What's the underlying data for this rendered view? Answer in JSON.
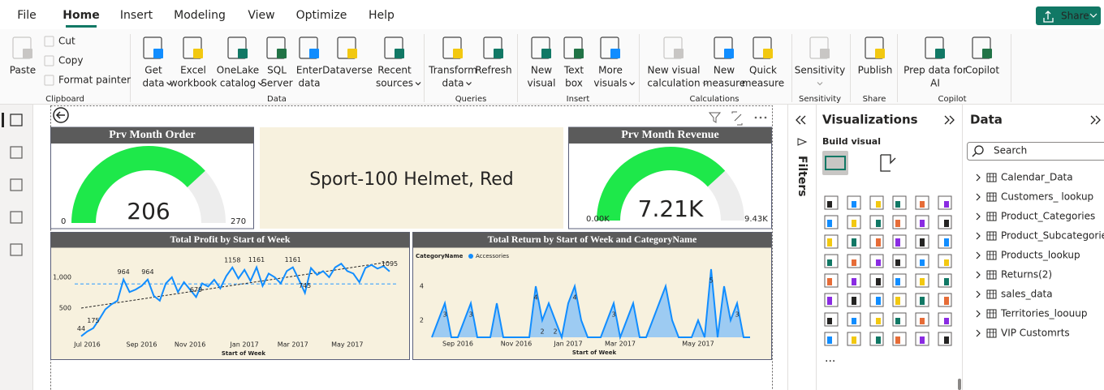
{
  "menu": {
    "tabs": [
      "File",
      "Home",
      "Insert",
      "Modeling",
      "View",
      "Optimize",
      "Help"
    ],
    "active_tab": 1,
    "share": "Share"
  },
  "ribbon": {
    "groups": [
      {
        "label": "Clipboard",
        "buttons": [
          {
            "lines": [
              "Paste"
            ],
            "disabled": true
          },
          {
            "lines": [
              "Cut"
            ],
            "disabled": true,
            "small": true
          },
          {
            "lines": [
              "Copy"
            ],
            "disabled": true,
            "small": true
          },
          {
            "lines": [
              "Format painter"
            ],
            "disabled": true,
            "small": true
          }
        ]
      },
      {
        "label": "Data",
        "buttons": [
          {
            "lines": [
              "Get",
              "data"
            ],
            "dropdown": true
          },
          {
            "lines": [
              "Excel",
              "workbook"
            ]
          },
          {
            "lines": [
              "OneLake",
              "catalog"
            ],
            "dropdown": true
          },
          {
            "lines": [
              "SQL",
              "Server"
            ]
          },
          {
            "lines": [
              "Enter",
              "data"
            ]
          },
          {
            "lines": [
              "Dataverse"
            ]
          },
          {
            "lines": [
              "Recent",
              "sources"
            ],
            "dropdown": true
          }
        ]
      },
      {
        "label": "Queries",
        "buttons": [
          {
            "lines": [
              "Transform",
              "data"
            ],
            "dropdown": true
          },
          {
            "lines": [
              "Refresh"
            ]
          }
        ]
      },
      {
        "label": "Insert",
        "buttons": [
          {
            "lines": [
              "New",
              "visual"
            ]
          },
          {
            "lines": [
              "Text",
              "box"
            ]
          },
          {
            "lines": [
              "More",
              "visuals"
            ],
            "dropdown": true
          }
        ]
      },
      {
        "label": "Calculations",
        "buttons": [
          {
            "lines": [
              "New visual",
              "calculation"
            ],
            "dropdown": true,
            "disabled": true
          },
          {
            "lines": [
              "New",
              "measure"
            ]
          },
          {
            "lines": [
              "Quick",
              "measure"
            ]
          }
        ]
      },
      {
        "label": "Sensitivity",
        "buttons": [
          {
            "lines": [
              "Sensitivity"
            ],
            "dropdown": true,
            "disabled": true
          }
        ]
      },
      {
        "label": "Share",
        "buttons": [
          {
            "lines": [
              "Publish"
            ]
          }
        ]
      },
      {
        "label": "Copilot",
        "buttons": [
          {
            "lines": [
              "Prep data for",
              "AI"
            ]
          },
          {
            "lines": [
              "Copilot"
            ]
          }
        ]
      }
    ]
  },
  "order_gauge": {
    "title": "Prv Month Order",
    "value": 206,
    "min": 0,
    "max": 270,
    "color": "#1ee84a"
  },
  "product_card": {
    "text": "Sport-100 Helmet, Red"
  },
  "revenue_gauge": {
    "title": "Prv Month Revenue",
    "value": 7210,
    "value_label": "7.21K",
    "min": {
      "value": 0,
      "label": "0.00K"
    },
    "max": {
      "value": 9430,
      "label": "9.43K"
    },
    "color": "#1ee84a"
  },
  "profit_chart": {
    "type": "line",
    "title": "Total Profit by Start of Week",
    "x_title": "Start of Week",
    "color": "#118dff",
    "values": [
      44,
      120,
      175,
      320,
      480,
      560,
      620,
      964,
      760,
      800,
      860,
      964,
      700,
      620,
      900,
      1000,
      760,
      920,
      800,
      679,
      900,
      850,
      960,
      820,
      1020,
      1158,
      980,
      1120,
      940,
      1161,
      860,
      1060,
      1000,
      900,
      1100,
      1161,
      960,
      745,
      1150,
      1040,
      1100,
      1000,
      1160,
      1220,
      1100,
      1060,
      920,
      1150,
      1200,
      1140,
      1180,
      1095
    ],
    "value_labels": [
      "44",
      null,
      "175",
      null,
      null,
      null,
      null,
      "964",
      null,
      null,
      null,
      "964",
      null,
      null,
      null,
      null,
      null,
      null,
      null,
      "679",
      null,
      null,
      null,
      null,
      null,
      "1158",
      null,
      null,
      null,
      "1161",
      null,
      null,
      null,
      null,
      null,
      "1161",
      null,
      "745",
      null,
      null,
      null,
      null,
      null,
      null,
      null,
      null,
      null,
      null,
      null,
      null,
      null,
      "1095"
    ],
    "ylim": [
      0,
      1420
    ],
    "yticks": [
      500,
      {
        "value": 1000,
        "label": "1,000"
      }
    ],
    "xticks": [
      {
        "value": 1,
        "label": "Jul 2016"
      },
      {
        "value": 10,
        "label": "Sep 2016"
      },
      {
        "value": 18,
        "label": "Nov 2016"
      },
      {
        "value": 27,
        "label": "Jan 2017"
      },
      {
        "value": 35,
        "label": "Mar 2017"
      },
      {
        "value": 44,
        "label": "May 2017"
      }
    ],
    "average": 890,
    "trend": [
      500,
      1250
    ]
  },
  "return_chart": {
    "type": "area",
    "title": "Total Return by Start of Week and CategoryName",
    "x_title": "Start of Week",
    "legend_title": "CategoryName",
    "series": [
      {
        "name": "Accessories",
        "color": "#118dff",
        "values": [
          1,
          2,
          3,
          1,
          1,
          2,
          3,
          1,
          1,
          1,
          3,
          1,
          1,
          1,
          1,
          1,
          4,
          2,
          3,
          2,
          1,
          3,
          4,
          2,
          1,
          1,
          1,
          2,
          3,
          1,
          2,
          3,
          1,
          1,
          2,
          3,
          4,
          2,
          1,
          1,
          1,
          2,
          1,
          5,
          1,
          4,
          2,
          3,
          1,
          1
        ],
        "value_labels": [
          null,
          null,
          "3",
          null,
          null,
          null,
          "3",
          null,
          null,
          null,
          null,
          null,
          null,
          null,
          null,
          null,
          "4",
          "2",
          null,
          "2",
          null,
          null,
          "4",
          null,
          null,
          null,
          null,
          null,
          "3",
          null,
          null,
          null,
          null,
          null,
          null,
          null,
          null,
          null,
          null,
          null,
          null,
          null,
          null,
          "5",
          null,
          null,
          null,
          "3",
          null,
          null
        ]
      }
    ],
    "ylim": [
      1,
      5.5
    ],
    "yticks": [
      2,
      4
    ],
    "xticks": [
      {
        "value": 4,
        "label": "Sep 2016"
      },
      {
        "value": 13,
        "label": "Nov 2016"
      },
      {
        "value": 21,
        "label": "Jan 2017"
      },
      {
        "value": 29,
        "label": "Mar 2017"
      },
      {
        "value": 41,
        "label": "May 2017"
      }
    ]
  },
  "filters": {
    "label": "Filters"
  },
  "visualizations": {
    "title": "Visualizations",
    "subtitle": "Build visual",
    "more": "···"
  },
  "data_pane": {
    "title": "Data",
    "search_placeholder": "Search",
    "tables": [
      "Calendar_Data",
      "Customers_ lookup",
      "Product_Categories",
      "Product_Subcategories",
      "Products_lookup",
      "Returns(2)",
      "sales_data",
      "Territories_loouup",
      "VIP Customrts"
    ]
  }
}
